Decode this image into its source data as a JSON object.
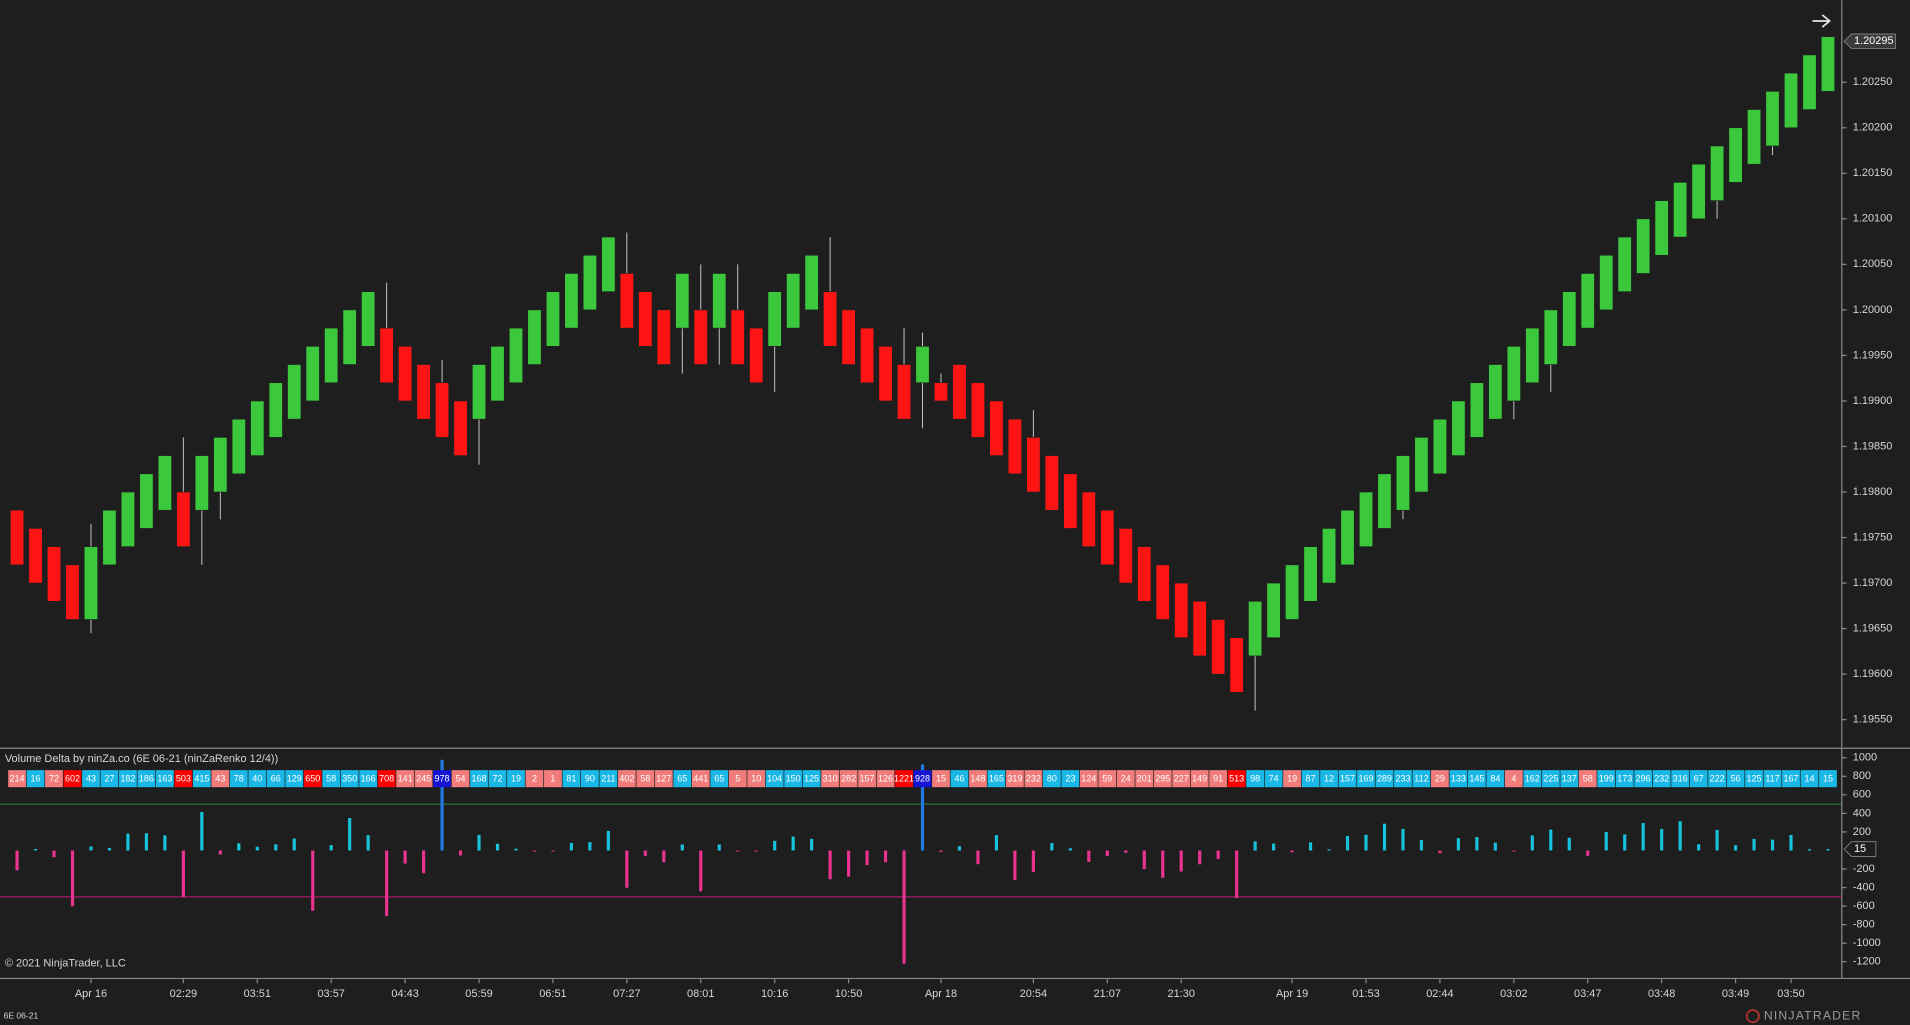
{
  "chart_data": [
    {
      "type": "candlestick",
      "categories": [
        null,
        null,
        null,
        null,
        "Apr 16",
        null,
        null,
        null,
        null,
        "02:29",
        null,
        null,
        null,
        "03:51",
        null,
        null,
        null,
        "03:57",
        null,
        null,
        null,
        "04:43",
        null,
        null,
        null,
        "05:59",
        null,
        null,
        null,
        "06:51",
        null,
        null,
        null,
        "07:27",
        null,
        null,
        null,
        "08:01",
        null,
        null,
        null,
        "10:16",
        null,
        null,
        null,
        "10:50",
        null,
        null,
        null,
        null,
        "Apr 18",
        null,
        null,
        null,
        null,
        "20:54",
        null,
        null,
        null,
        "21:07",
        null,
        null,
        null,
        "21:30",
        null,
        null,
        null,
        null,
        null,
        "Apr 19",
        null,
        null,
        null,
        "01:53",
        null,
        null,
        null,
        "02:44",
        null,
        null,
        null,
        "03:02",
        null,
        null,
        null,
        "03:47",
        null,
        null,
        null,
        "03:48",
        null,
        null,
        null,
        "03:49",
        null,
        null,
        "03:50",
        null,
        null
      ],
      "open": [
        1.1978,
        1.1976,
        1.1974,
        1.1972,
        1.1966,
        1.1972,
        1.1974,
        1.1976,
        1.1978,
        1.198,
        1.1978,
        1.198,
        1.1982,
        1.1984,
        1.1986,
        1.1988,
        1.199,
        1.1992,
        1.1994,
        1.1996,
        1.1998,
        1.1996,
        1.1994,
        1.1992,
        1.199,
        1.1988,
        1.199,
        1.1992,
        1.1994,
        1.1996,
        1.1998,
        1.2,
        1.2002,
        1.2004,
        1.2002,
        1.2,
        1.1998,
        1.2,
        1.1998,
        1.2,
        1.1998,
        1.1996,
        1.1998,
        1.2,
        1.2002,
        1.2,
        1.1998,
        1.1996,
        1.1994,
        1.1992,
        1.1992,
        1.1994,
        1.1992,
        1.199,
        1.1988,
        1.1986,
        1.1984,
        1.1982,
        1.198,
        1.1978,
        1.1976,
        1.1974,
        1.1972,
        1.197,
        1.1968,
        1.1966,
        1.1964,
        1.1962,
        1.1964,
        1.1966,
        1.1968,
        1.197,
        1.1972,
        1.1974,
        1.1976,
        1.1978,
        1.198,
        1.1982,
        1.1984,
        1.1986,
        1.1988,
        1.199,
        1.1992,
        1.1994,
        1.1996,
        1.1998,
        1.2,
        1.2002,
        1.2004,
        1.2006,
        1.2008,
        1.201,
        1.2012,
        1.2014,
        1.2016,
        1.2018,
        1.202,
        1.2022,
        1.2024
      ],
      "high": [
        1.1978,
        1.1976,
        1.1974,
        1.1972,
        1.19765,
        1.1978,
        1.198,
        1.1982,
        1.1984,
        1.1986,
        1.1984,
        1.1986,
        1.1988,
        1.199,
        1.1992,
        1.1994,
        1.1996,
        1.1998,
        1.2,
        1.2002,
        1.2003,
        1.1996,
        1.1994,
        1.19945,
        1.199,
        1.1994,
        1.1996,
        1.1998,
        1.2,
        1.2002,
        1.2004,
        1.2006,
        1.2008,
        1.20085,
        1.2002,
        1.2,
        1.2004,
        1.2005,
        1.2004,
        1.2005,
        1.1998,
        1.2002,
        1.2004,
        1.2006,
        1.2008,
        1.2,
        1.1998,
        1.1996,
        1.1998,
        1.19975,
        1.1993,
        1.1994,
        1.1992,
        1.199,
        1.1988,
        1.1989,
        1.1984,
        1.1982,
        1.198,
        1.1978,
        1.1976,
        1.1974,
        1.1972,
        1.197,
        1.1968,
        1.1966,
        1.1964,
        1.1968,
        1.197,
        1.1972,
        1.1974,
        1.1976,
        1.1978,
        1.198,
        1.1982,
        1.1984,
        1.1986,
        1.1988,
        1.199,
        1.1992,
        1.1994,
        1.1996,
        1.1998,
        1.2,
        1.2002,
        1.2004,
        1.2006,
        1.2008,
        1.201,
        1.2012,
        1.2014,
        1.2016,
        1.2018,
        1.202,
        1.2022,
        1.2024,
        1.2026,
        1.2028,
        1.203
      ],
      "low": [
        1.1972,
        1.197,
        1.1968,
        1.1966,
        1.19645,
        1.1972,
        1.1974,
        1.1976,
        1.1978,
        1.1974,
        1.1972,
        1.1977,
        1.1982,
        1.1984,
        1.1986,
        1.1988,
        1.199,
        1.1992,
        1.1994,
        1.1996,
        1.1992,
        1.199,
        1.1988,
        1.1986,
        1.1984,
        1.1983,
        1.199,
        1.1992,
        1.1994,
        1.1996,
        1.1998,
        1.2,
        1.2002,
        1.1998,
        1.1996,
        1.1994,
        1.1993,
        1.1994,
        1.1994,
        1.1994,
        1.1992,
        1.1991,
        1.1998,
        1.2,
        1.1996,
        1.1994,
        1.1992,
        1.199,
        1.1988,
        1.1987,
        1.199,
        1.1988,
        1.1986,
        1.1984,
        1.1982,
        1.198,
        1.1978,
        1.1976,
        1.1974,
        1.1972,
        1.197,
        1.1968,
        1.1966,
        1.1964,
        1.1962,
        1.196,
        1.1958,
        1.1956,
        1.1964,
        1.1966,
        1.1968,
        1.197,
        1.1972,
        1.1974,
        1.1976,
        1.1977,
        1.198,
        1.1982,
        1.1984,
        1.1986,
        1.1988,
        1.1988,
        1.1992,
        1.1991,
        1.1996,
        1.1998,
        1.2,
        1.2002,
        1.2004,
        1.2006,
        1.2008,
        1.201,
        1.201,
        1.2014,
        1.2016,
        1.2017,
        1.202,
        1.2022,
        1.2024
      ],
      "close": [
        1.1972,
        1.197,
        1.1968,
        1.1966,
        1.1974,
        1.1978,
        1.198,
        1.1982,
        1.1984,
        1.1974,
        1.1984,
        1.1986,
        1.1988,
        1.199,
        1.1992,
        1.1994,
        1.1996,
        1.1998,
        1.2,
        1.2002,
        1.1992,
        1.199,
        1.1988,
        1.1986,
        1.1984,
        1.1994,
        1.1996,
        1.1998,
        1.2,
        1.2002,
        1.2004,
        1.2006,
        1.2008,
        1.1998,
        1.1996,
        1.1994,
        1.2004,
        1.1994,
        1.2004,
        1.1994,
        1.1992,
        1.2002,
        1.2004,
        1.2006,
        1.1996,
        1.1994,
        1.1992,
        1.199,
        1.1988,
        1.1996,
        1.199,
        1.1988,
        1.1986,
        1.1984,
        1.1982,
        1.198,
        1.1978,
        1.1976,
        1.1974,
        1.1972,
        1.197,
        1.1968,
        1.1966,
        1.1964,
        1.1962,
        1.196,
        1.1958,
        1.1968,
        1.197,
        1.1972,
        1.1974,
        1.1976,
        1.1978,
        1.198,
        1.1982,
        1.1984,
        1.1986,
        1.1988,
        1.199,
        1.1992,
        1.1994,
        1.1996,
        1.1998,
        1.2,
        1.2002,
        1.2004,
        1.2006,
        1.2008,
        1.201,
        1.2012,
        1.2014,
        1.2016,
        1.2018,
        1.202,
        1.2022,
        1.2024,
        1.2026,
        1.2028,
        1.203
      ],
      "up_color": "#3cc83c",
      "down_color": "#ff1414",
      "wick_color": "#c8c8c8",
      "ylim": [
        1.1952,
        1.2034
      ],
      "yticks": [
        {
          "value": 1.1955,
          "label": "1.19550"
        },
        {
          "value": 1.196,
          "label": "1.19600"
        },
        {
          "value": 1.1965,
          "label": "1.19650"
        },
        {
          "value": 1.197,
          "label": "1.19700"
        },
        {
          "value": 1.1975,
          "label": "1.19750"
        },
        {
          "value": 1.198,
          "label": "1.19800"
        },
        {
          "value": 1.1985,
          "label": "1.19850"
        },
        {
          "value": 1.199,
          "label": "1.19900"
        },
        {
          "value": 1.1995,
          "label": "1.19950"
        },
        {
          "value": 1.2,
          "label": "1.20000"
        },
        {
          "value": 1.2005,
          "label": "1.20050"
        },
        {
          "value": 1.201,
          "label": "1.20100"
        },
        {
          "value": 1.2015,
          "label": "1.20150"
        },
        {
          "value": 1.202,
          "label": "1.20200"
        },
        {
          "value": 1.2025,
          "label": "1.20250"
        }
      ],
      "last_price": {
        "value": 1.20295,
        "label": "1.20295"
      },
      "grid": false
    },
    {
      "type": "bar",
      "title": "Volume Delta by ninZa.co (6E 06-21 (ninZaRenko 12/4))",
      "values": [
        -214,
        16,
        -72,
        -602,
        43,
        27,
        182,
        186,
        163,
        -503,
        415,
        -43,
        78,
        40,
        66,
        129,
        -650,
        58,
        350,
        166,
        -708,
        -141,
        -245,
        978,
        -54,
        168,
        72,
        19,
        -2,
        -1,
        81,
        90,
        211,
        -402,
        -58,
        -127,
        65,
        -441,
        65,
        -5,
        -10,
        104,
        150,
        125,
        -310,
        -282,
        -157,
        -126,
        -1221,
        928,
        -15,
        46,
        -148,
        165,
        -319,
        -232,
        80,
        23,
        -124,
        -59,
        -24,
        -201,
        -295,
        -227,
        -149,
        -91,
        -513,
        98,
        74,
        -19,
        87,
        12,
        157,
        169,
        289,
        233,
        112,
        -29,
        133,
        145,
        84,
        -4,
        162,
        225,
        137,
        -58,
        199,
        173,
        296,
        232,
        316,
        67,
        222,
        56,
        125,
        117,
        167,
        14,
        15
      ],
      "value_labels": [
        "214",
        "16",
        "72",
        "602",
        "43",
        "27",
        "182",
        "186",
        "163",
        "503",
        "415",
        "43",
        "78",
        "40",
        "66",
        "129",
        "650",
        "58",
        "350",
        "166",
        "708",
        "141",
        "245",
        "978",
        "54",
        "168",
        "72",
        "19",
        "2",
        "1",
        "81",
        "90",
        "211",
        "402",
        "58",
        "127",
        "65",
        "441",
        "65",
        "5",
        "10",
        "104",
        "150",
        "125",
        "310",
        "282",
        "157",
        "126",
        "1221",
        "928",
        "15",
        "46",
        "148",
        "165",
        "319",
        "232",
        "80",
        "23",
        "124",
        "59",
        "24",
        "201",
        "295",
        "227",
        "149",
        "91",
        "513",
        "98",
        "74",
        "19",
        "87",
        "12",
        "157",
        "169",
        "289",
        "233",
        "112",
        "29",
        "133",
        "145",
        "84",
        "4",
        "162",
        "225",
        "137",
        "58",
        "199",
        "173",
        "296",
        "232",
        "316",
        "67",
        "222",
        "56",
        "125",
        "117",
        "167",
        "14",
        "15"
      ],
      "levels": [
        {
          "value": 500,
          "color": "#2e8b3a"
        },
        {
          "value": -500,
          "color": "#c2187a"
        }
      ],
      "up_color": "#17c3dc",
      "down_color": "#e8338f",
      "strong_up_color": "#1e7be6",
      "box_up_color": "#19b8e6",
      "box_down_color": "#f07c7c",
      "box_strong_up_color": "#1414d2",
      "box_strong_down_color": "#ff0000",
      "ylim": [
        -1380,
        1090
      ],
      "yticks": [
        1000,
        800,
        600,
        400,
        200,
        -200,
        -400,
        -600,
        -800,
        -1000,
        -1200
      ],
      "grid": false
    }
  ],
  "copyright": "© 2021 NinjaTrader, LLC",
  "instrument": "6E 06-21",
  "brand": "NINJATRADER"
}
